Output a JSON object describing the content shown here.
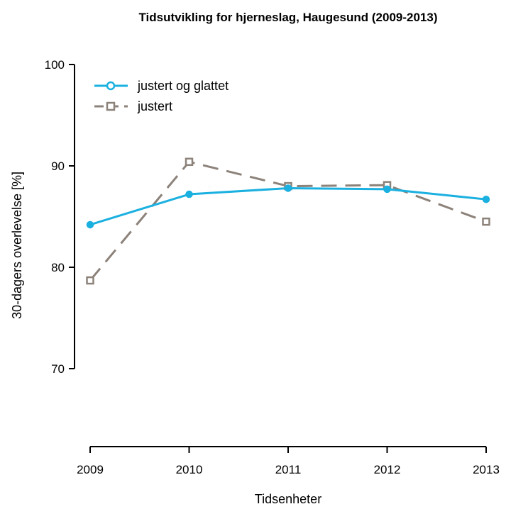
{
  "chart_data": {
    "type": "line",
    "title": "Tidsutvikling for hjerneslag, Haugesund (2009-2013)",
    "xlabel": "Tidsenheter",
    "ylabel": "30-dagers overlevelse [%]",
    "x": [
      2009,
      2010,
      2011,
      2012,
      2013
    ],
    "x_tick_labels": [
      "2009",
      "2010",
      "2011",
      "2012",
      "2013"
    ],
    "ylim": [
      70,
      100
    ],
    "y_ticks": [
      70,
      80,
      90,
      100
    ],
    "y_tick_labels": [
      "70",
      "80",
      "90",
      "100"
    ],
    "grid": false,
    "legend_position": "top-left",
    "series": [
      {
        "name": "justert og glattet",
        "values": [
          84.2,
          87.2,
          87.8,
          87.7,
          86.7
        ],
        "color": "#1ab0e0",
        "marker": "circle",
        "dash": "solid"
      },
      {
        "name": "justert",
        "values": [
          78.7,
          90.4,
          88.0,
          88.1,
          84.5
        ],
        "color": "#8c827a",
        "marker": "square",
        "dash": "dashed"
      }
    ]
  }
}
